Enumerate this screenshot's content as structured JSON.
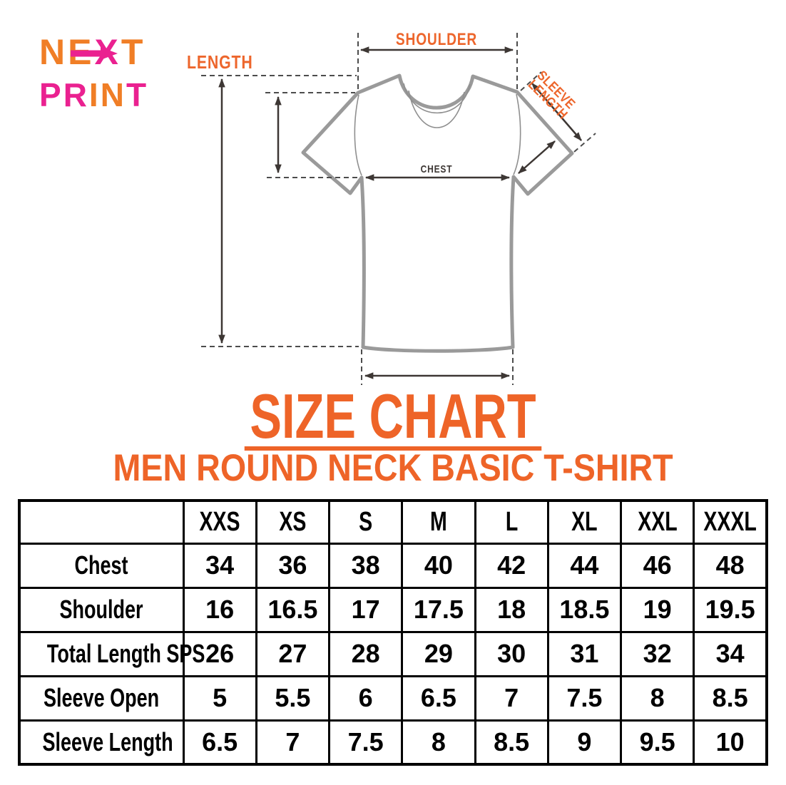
{
  "colors": {
    "heading_orange": "#EE6428",
    "diagram_label_orange": "#ED662C",
    "dimension_dark": "#3D3734",
    "shirt_gray": "#9A9A9A",
    "logo_orange": "#F07E26",
    "logo_pink": "#EA2190",
    "table_border": "#000000",
    "table_text": "#000000"
  },
  "logo": {
    "line1_letters": [
      "N",
      "E",
      "X",
      "T"
    ],
    "line1_colors": [
      "#F07E26",
      "#F07E26",
      "#EA2190",
      "#F07E26"
    ],
    "line2_letters": [
      "P",
      "R",
      "I",
      "N",
      "T"
    ],
    "line2_colors": [
      "#EA2190",
      "#EA2190",
      "#F07E26",
      "#F07E26",
      "#EA2190"
    ]
  },
  "diagram": {
    "labels": {
      "shoulder": "SHOULDER",
      "length": "LENGTH",
      "sleeve_line1": "SLEEVE",
      "sleeve_line2": "LENGTH",
      "chest": "CHEST"
    }
  },
  "title": {
    "text": "SIZE CHART"
  },
  "subtitle": {
    "text": "MEN ROUND NECK BASIC T-SHIRT"
  },
  "size_table": {
    "columns": [
      "XXS",
      "XS",
      "S",
      "M",
      "L",
      "XL",
      "XXL",
      "XXXL"
    ],
    "rows": [
      {
        "label": "Chest",
        "values": [
          "34",
          "36",
          "38",
          "40",
          "42",
          "44",
          "46",
          "48"
        ]
      },
      {
        "label": "Shoulder",
        "values": [
          "16",
          "16.5",
          "17",
          "17.5",
          "18",
          "18.5",
          "19",
          "19.5"
        ]
      },
      {
        "label": "Total Length SPS",
        "values": [
          "26",
          "27",
          "28",
          "29",
          "30",
          "31",
          "32",
          "34"
        ]
      },
      {
        "label": "Sleeve Open",
        "values": [
          "5",
          "5.5",
          "6",
          "6.5",
          "7",
          "7.5",
          "8",
          "8.5"
        ]
      },
      {
        "label": "Sleeve Length",
        "values": [
          "6.5",
          "7",
          "7.5",
          "8",
          "8.5",
          "9",
          "9.5",
          "10"
        ]
      }
    ]
  }
}
